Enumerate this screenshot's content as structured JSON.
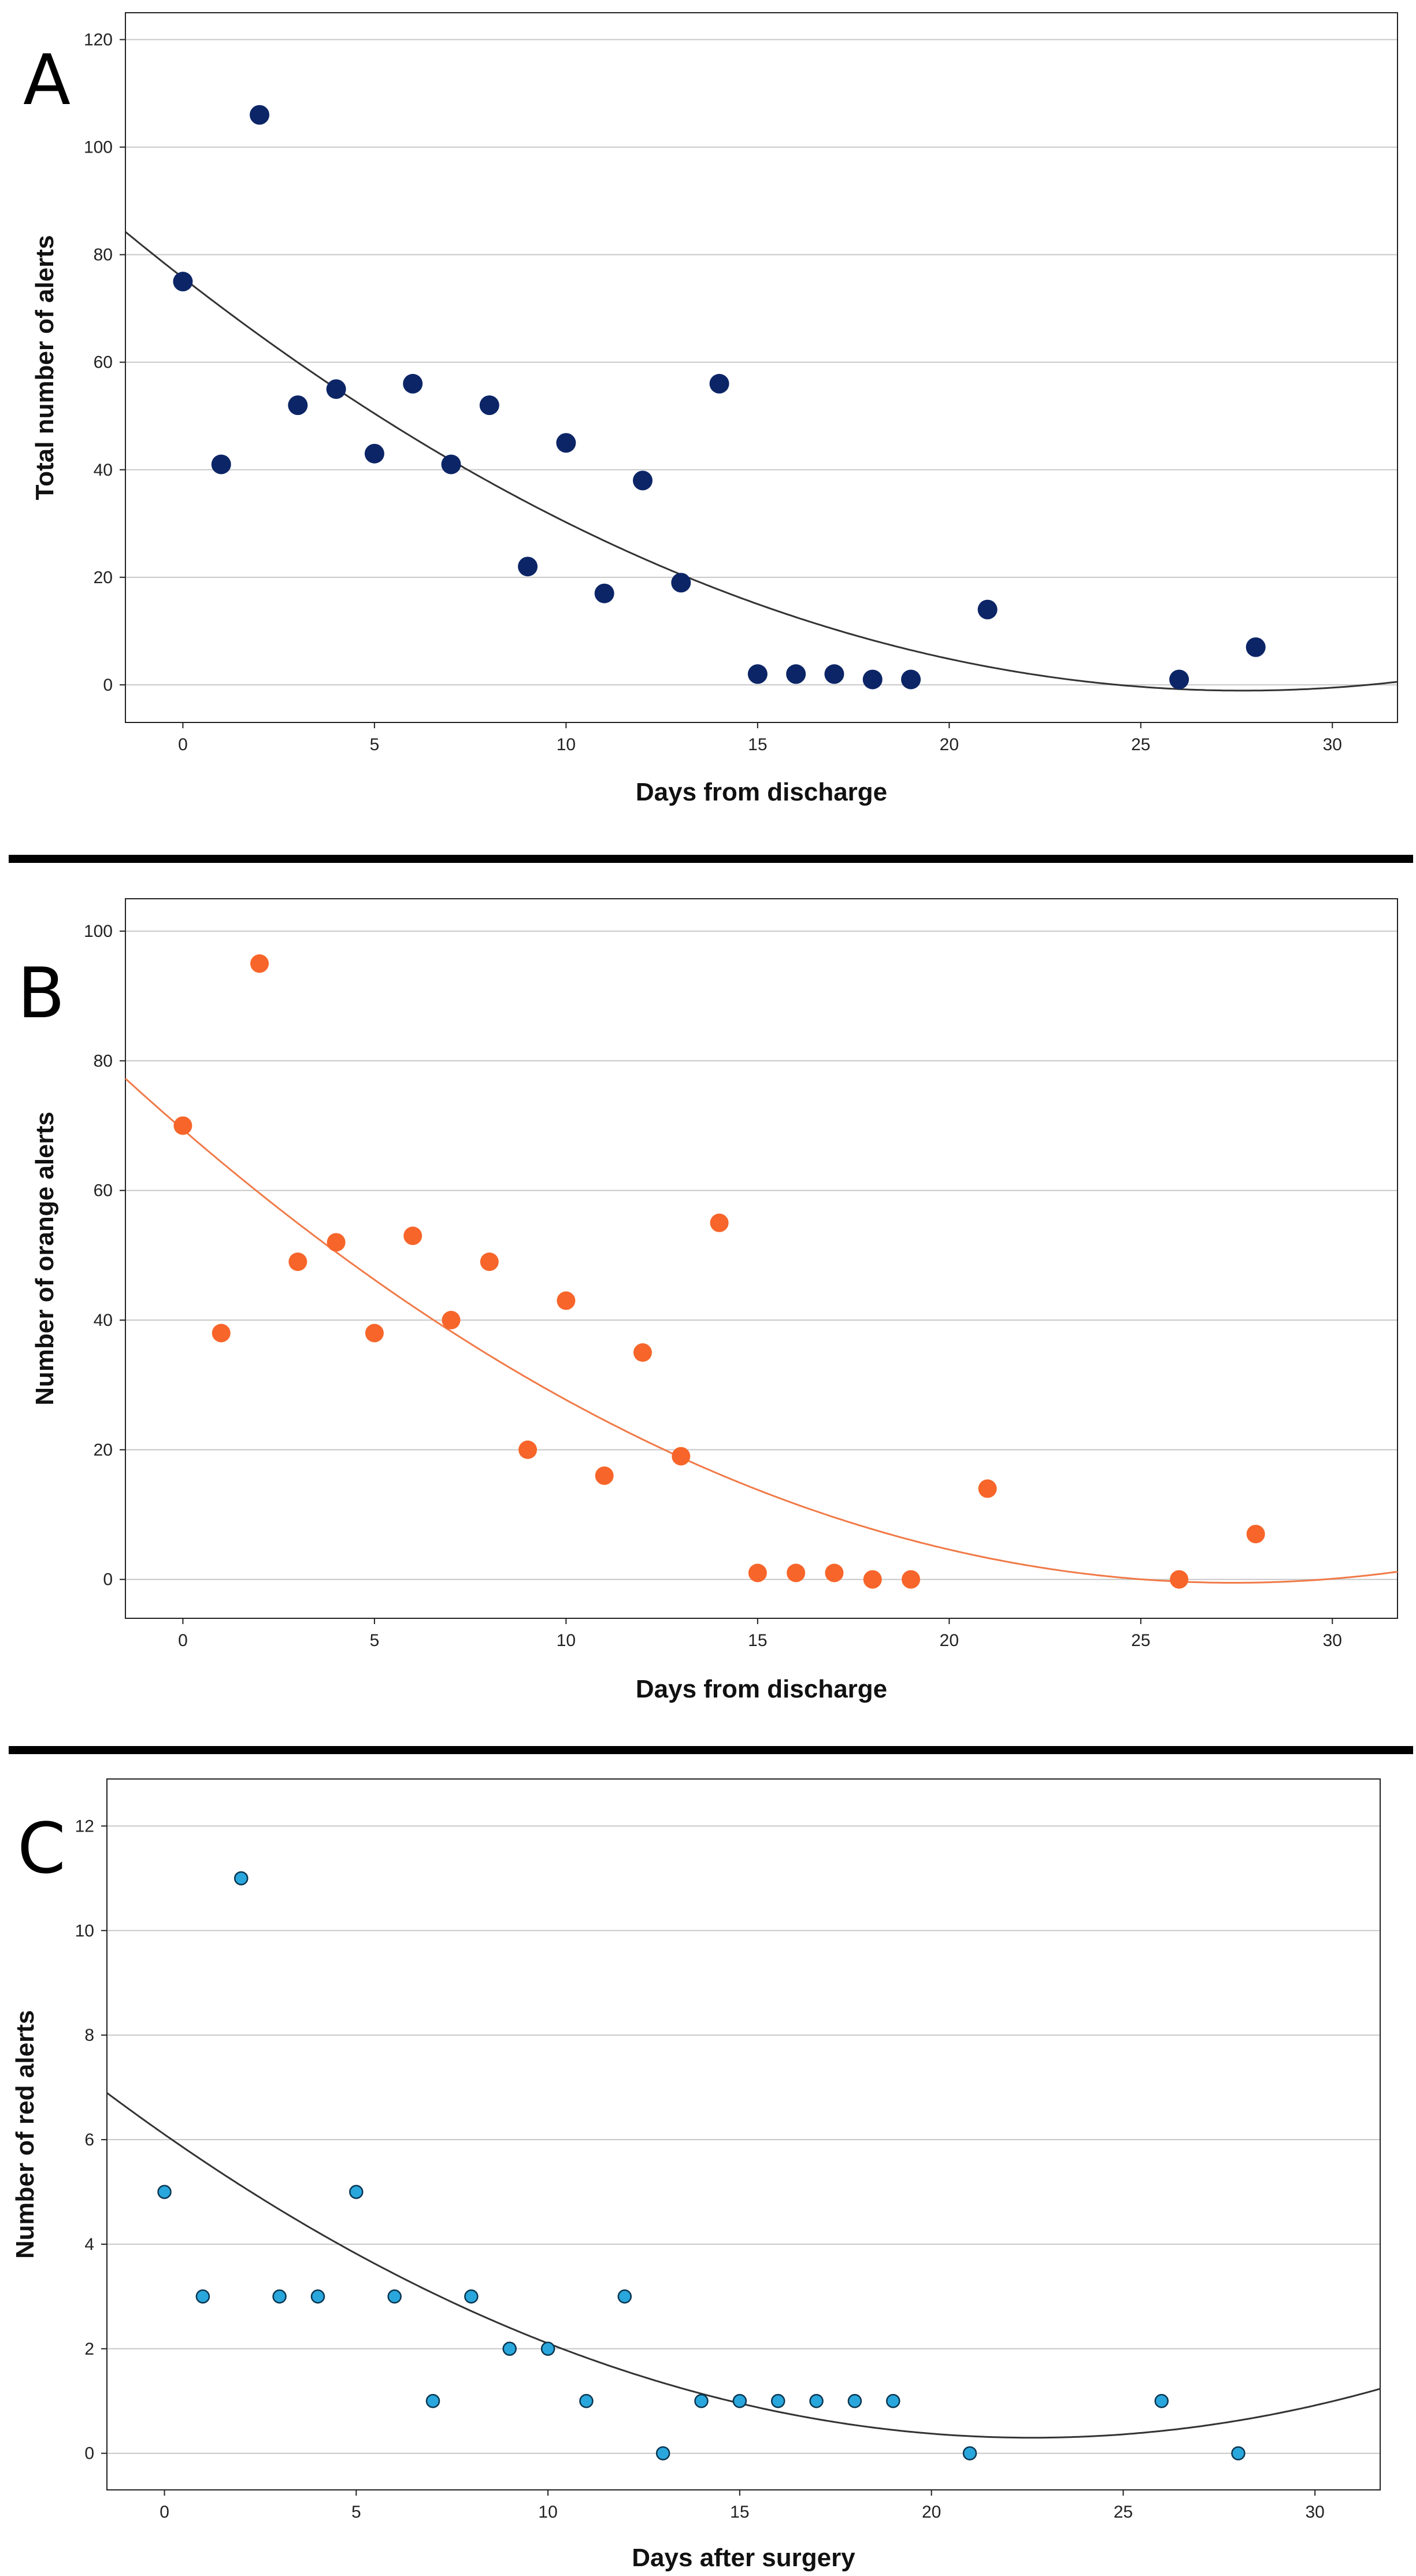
{
  "chart_data": [
    {
      "panel": "A",
      "type": "scatter",
      "xlabel": "Days from discharge",
      "ylabel": "Total number of alerts",
      "xlim": [
        -1.5,
        31.7
      ],
      "ylim": [
        -7,
        125
      ],
      "xticks": [
        0,
        5,
        10,
        15,
        20,
        25,
        30
      ],
      "yticks": [
        0,
        20,
        40,
        60,
        80,
        100,
        120
      ],
      "grid": true,
      "marker_color": "#0c2566",
      "fit_color": "#333333",
      "fit": {
        "type": "quadratic",
        "coefficients": [
          75.7,
          -5.55,
          0.1003
        ]
      },
      "x": [
        0,
        1,
        2,
        3,
        4,
        5,
        6,
        7,
        8,
        9,
        10,
        11,
        12,
        13,
        14,
        15,
        16,
        17,
        18,
        19,
        21,
        26,
        28
      ],
      "y": [
        75,
        41,
        106,
        52,
        55,
        43,
        56,
        41,
        52,
        22,
        45,
        17,
        38,
        19,
        56,
        2,
        2,
        2,
        1,
        1,
        14,
        1,
        7
      ]
    },
    {
      "panel": "B",
      "type": "scatter",
      "xlabel": "Days from discharge",
      "ylabel": "Number of orange alerts",
      "xlim": [
        -1.5,
        31.7
      ],
      "ylim": [
        -6,
        105
      ],
      "xticks": [
        0,
        5,
        10,
        15,
        20,
        25,
        30
      ],
      "yticks": [
        0,
        20,
        40,
        60,
        80,
        100
      ],
      "grid": true,
      "marker_color": "#f7652a",
      "fit_color": "#f07a48",
      "fit": {
        "type": "quadratic",
        "coefficients": [
          69.4,
          -5.1,
          0.093
        ]
      },
      "x": [
        0,
        1,
        2,
        3,
        4,
        5,
        6,
        7,
        8,
        9,
        10,
        11,
        12,
        13,
        14,
        15,
        16,
        17,
        18,
        19,
        21,
        26,
        28
      ],
      "y": [
        70,
        38,
        95,
        49,
        52,
        38,
        53,
        40,
        49,
        20,
        43,
        16,
        35,
        19,
        55,
        1,
        1,
        1,
        0,
        0,
        14,
        0,
        7
      ]
    },
    {
      "panel": "C",
      "type": "scatter",
      "xlabel": "Days after surgery",
      "ylabel": "Number of red alerts",
      "xlim": [
        -1.5,
        31.7
      ],
      "ylim": [
        -0.7,
        12.9
      ],
      "xticks": [
        0,
        5,
        10,
        15,
        20,
        25,
        30
      ],
      "yticks": [
        0,
        2,
        4,
        6,
        8,
        10,
        12
      ],
      "grid": true,
      "marker_color": "#29a7dc",
      "fit_color": "#333333",
      "fit": {
        "type": "quadratic",
        "coefficients": [
          6.1,
          -0.513,
          0.01134
        ]
      },
      "x": [
        0,
        1,
        2,
        3,
        4,
        5,
        6,
        7,
        8,
        9,
        10,
        11,
        12,
        13,
        14,
        15,
        16,
        17,
        18,
        19,
        21,
        26,
        28
      ],
      "y": [
        5,
        3,
        11,
        3,
        3,
        5,
        3,
        1,
        3,
        2,
        2,
        1,
        3,
        0,
        1,
        1,
        1,
        1,
        1,
        1,
        0,
        1,
        0
      ]
    }
  ]
}
